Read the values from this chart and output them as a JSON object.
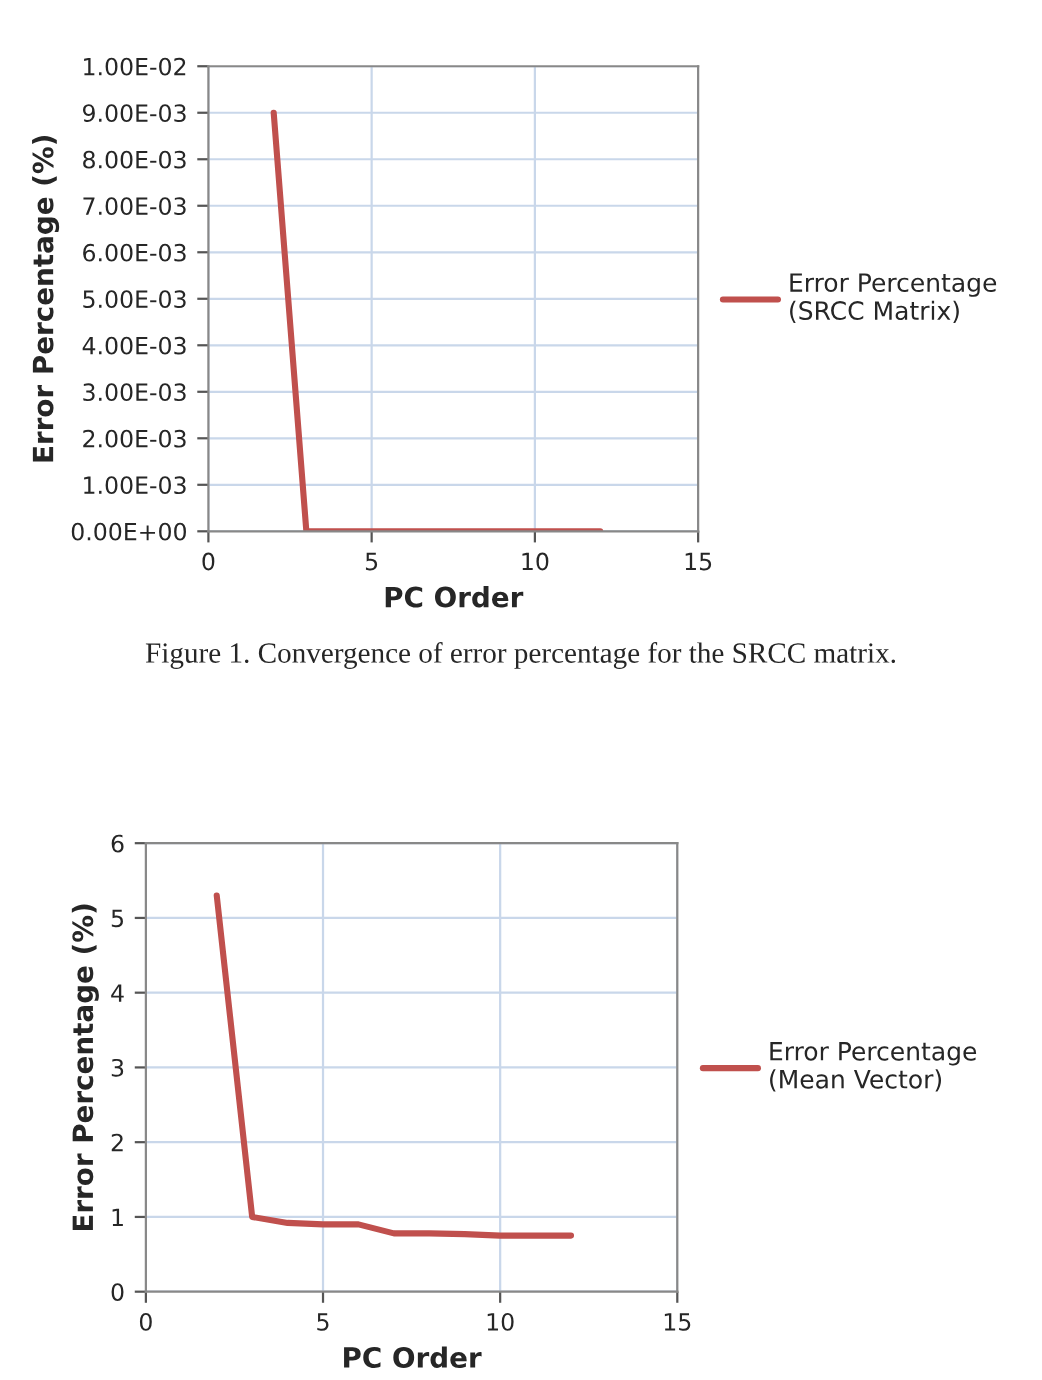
{
  "chart_data": [
    {
      "type": "line",
      "xlabel": "PC Order",
      "ylabel": "Error Percentage (%)",
      "x": [
        2,
        3,
        4,
        5,
        6,
        7,
        8,
        9,
        10,
        11,
        12
      ],
      "series": [
        {
          "name": "Error Percentage\n(SRCC Matrix)",
          "color": "#c0504d",
          "values": [
            0.009,
            0,
            0,
            0,
            0,
            0,
            0,
            0,
            0,
            0,
            0
          ]
        }
      ],
      "xlim": [
        0,
        15
      ],
      "xticks": [
        0,
        5,
        10,
        15
      ],
      "ylim": [
        0,
        0.01
      ],
      "yticks": [
        {
          "value": 0,
          "label": "0.00E+00"
        },
        {
          "value": 0.001,
          "label": "1.00E-03"
        },
        {
          "value": 0.002,
          "label": "2.00E-03"
        },
        {
          "value": 0.003,
          "label": "3.00E-03"
        },
        {
          "value": 0.004,
          "label": "4.00E-03"
        },
        {
          "value": 0.005,
          "label": "5.00E-03"
        },
        {
          "value": 0.006,
          "label": "6.00E-03"
        },
        {
          "value": 0.007,
          "label": "7.00E-03"
        },
        {
          "value": 0.008,
          "label": "8.00E-03"
        },
        {
          "value": 0.009,
          "label": "9.00E-03"
        },
        {
          "value": 0.01,
          "label": "1.00E-02"
        }
      ],
      "grid": true,
      "legend": "right",
      "line_style": "solid",
      "marker": "none",
      "annotations": [
        "Figure 1. Convergence of error percentage for the SRCC matrix."
      ]
    },
    {
      "type": "line",
      "xlabel": "PC Order",
      "ylabel": "Error Percentage (%)",
      "x": [
        2,
        3,
        4,
        5,
        6,
        7,
        8,
        9,
        10,
        11,
        12
      ],
      "series": [
        {
          "name": "Error Percentage\n(Mean Vector)",
          "color": "#c0504d",
          "values": [
            5.3,
            1.0,
            0.92,
            0.9,
            0.9,
            0.78,
            0.78,
            0.77,
            0.75,
            0.75,
            0.75
          ]
        }
      ],
      "xlim": [
        0,
        15
      ],
      "xticks": [
        0,
        5,
        10,
        15
      ],
      "ylim": [
        0,
        6
      ],
      "yticks": [
        0,
        1,
        2,
        3,
        4,
        5,
        6
      ],
      "grid": true,
      "legend": "right",
      "line_style": "solid",
      "marker": "none"
    }
  ]
}
